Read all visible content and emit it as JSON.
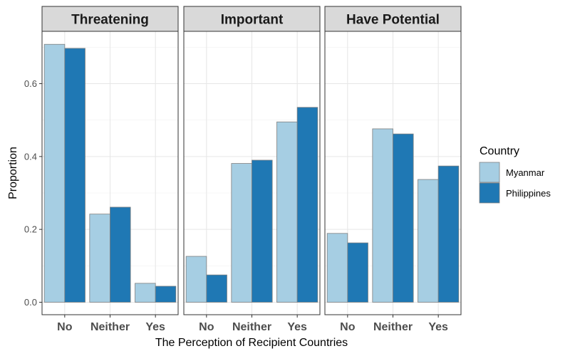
{
  "chart_data": {
    "type": "bar",
    "facets": [
      "Threatening",
      "Important",
      "Have Potential"
    ],
    "categories": [
      "No",
      "Neither",
      "Yes"
    ],
    "series": [
      {
        "name": "Myanmar",
        "color": "#a6cee3",
        "values": [
          [
            0.708,
            0.242,
            0.052
          ],
          [
            0.126,
            0.381,
            0.495
          ],
          [
            0.189,
            0.476,
            0.337
          ]
        ]
      },
      {
        "name": "Philippines",
        "color": "#1f78b4",
        "values": [
          [
            0.697,
            0.261,
            0.044
          ],
          [
            0.075,
            0.39,
            0.535
          ],
          [
            0.163,
            0.462,
            0.374
          ]
        ]
      }
    ],
    "xlabel": "The Perception of Recipient Countries",
    "ylabel": "Proportion",
    "yticks": [
      "0.0",
      "0.2",
      "0.4",
      "0.6"
    ],
    "ylim": [
      0,
      0.74
    ],
    "legend": {
      "title": "Country",
      "position": "right"
    },
    "grid": true
  }
}
